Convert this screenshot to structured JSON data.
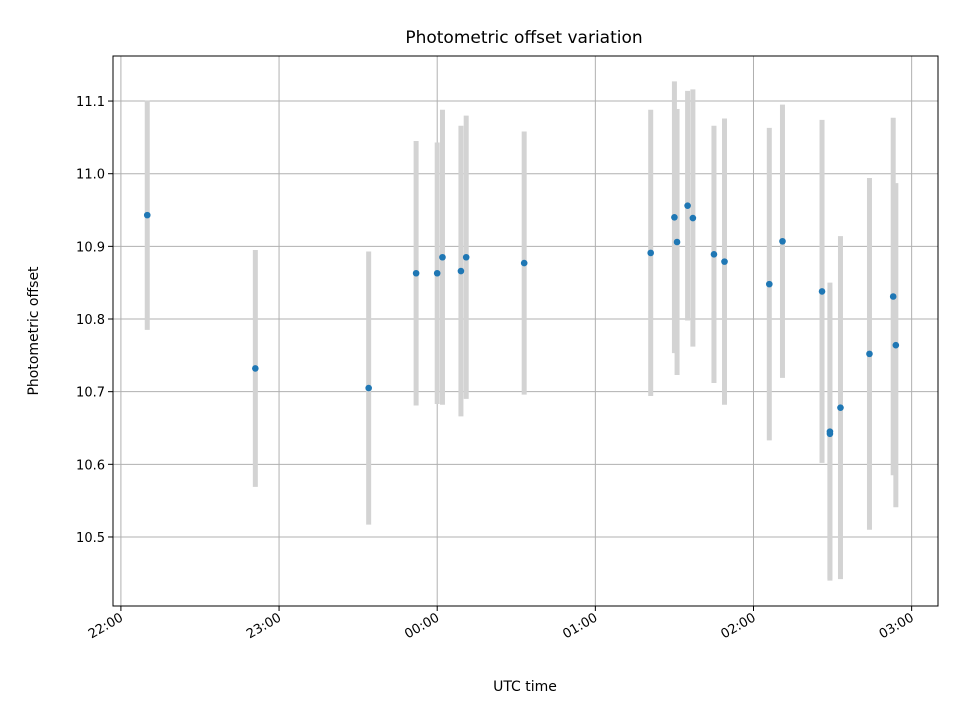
{
  "chart_data": {
    "type": "scatter",
    "title": "Photometric offset variation",
    "xlabel": "UTC time",
    "ylabel": "Photometric offset",
    "x_tick_labels": [
      "22:00",
      "23:00",
      "00:00",
      "01:00",
      "02:00",
      "03:00"
    ],
    "x_tick_values_minutes": [
      0,
      60,
      120,
      180,
      240,
      300
    ],
    "xlim_minutes": [
      -3,
      310
    ],
    "y_ticks": [
      10.5,
      10.6,
      10.7,
      10.8,
      10.9,
      11.0,
      11.1
    ],
    "y_tick_labels": [
      "10.5",
      "10.6",
      "10.7",
      "10.8",
      "10.9",
      "11.0",
      "11.1"
    ],
    "ylim": [
      10.405,
      11.162
    ],
    "grid": true,
    "colors": {
      "marker": "#1f77b4",
      "errorbar": "#d3d3d3"
    },
    "series": [
      {
        "points": [
          {
            "t": "22:10",
            "y": 10.943,
            "err": 0.158
          },
          {
            "t": "22:51",
            "y": 10.732,
            "err": 0.163
          },
          {
            "t": "23:34",
            "y": 10.705,
            "err": 0.188
          },
          {
            "t": "23:52",
            "y": 10.863,
            "err": 0.182
          },
          {
            "t": "00:00",
            "y": 10.863,
            "err": 0.18
          },
          {
            "t": "00:02",
            "y": 10.885,
            "err": 0.203
          },
          {
            "t": "00:09",
            "y": 10.866,
            "err": 0.2
          },
          {
            "t": "00:11",
            "y": 10.885,
            "err": 0.195
          },
          {
            "t": "00:33",
            "y": 10.877,
            "err": 0.181
          },
          {
            "t": "01:21",
            "y": 10.891,
            "err": 0.197
          },
          {
            "t": "01:30",
            "y": 10.94,
            "err": 0.187
          },
          {
            "t": "01:31",
            "y": 10.906,
            "err": 0.183
          },
          {
            "t": "01:35",
            "y": 10.956,
            "err": 0.158
          },
          {
            "t": "01:37",
            "y": 10.939,
            "err": 0.177
          },
          {
            "t": "01:45",
            "y": 10.889,
            "err": 0.177
          },
          {
            "t": "01:49",
            "y": 10.879,
            "err": 0.197
          },
          {
            "t": "02:06",
            "y": 10.848,
            "err": 0.215
          },
          {
            "t": "02:11",
            "y": 10.907,
            "err": 0.188
          },
          {
            "t": "02:26",
            "y": 10.838,
            "err": 0.236
          },
          {
            "t": "02:29",
            "y": 10.645,
            "err": 0.205
          },
          {
            "t": "02:29",
            "y": 10.642,
            "err": 0.2
          },
          {
            "t": "02:33",
            "y": 10.678,
            "err": 0.236
          },
          {
            "t": "02:44",
            "y": 10.752,
            "err": 0.242
          },
          {
            "t": "02:53",
            "y": 10.831,
            "err": 0.246
          },
          {
            "t": "02:54",
            "y": 10.764,
            "err": 0.223
          }
        ]
      }
    ]
  }
}
